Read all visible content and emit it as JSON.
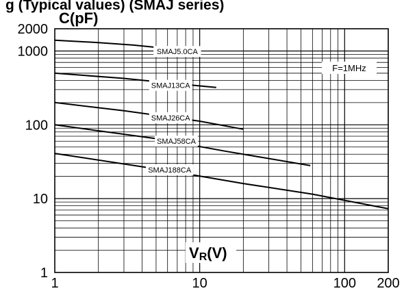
{
  "caption_fragment": "g (Typical values) (SMAJ series)",
  "chart_data": {
    "type": "line",
    "title": "",
    "xlabel": "VR(V)",
    "ylabel": "C(pF)",
    "xscale": "log",
    "yscale": "log",
    "xlim": [
      1,
      200
    ],
    "ylim": [
      1,
      2000
    ],
    "grid": true,
    "x_ticks": [
      {
        "value": 1,
        "label": "1"
      },
      {
        "value": 10,
        "label": "10"
      },
      {
        "value": 100,
        "label": "100"
      },
      {
        "value": 200,
        "label": "200"
      }
    ],
    "y_ticks": [
      {
        "value": 1,
        "label": "1"
      },
      {
        "value": 10,
        "label": "10"
      },
      {
        "value": 100,
        "label": "100"
      },
      {
        "value": 1000,
        "label": "1000"
      },
      {
        "value": 2000,
        "label": "2000"
      }
    ],
    "annotation": "F=1MHz",
    "series": [
      {
        "name": "SMAJ5.0CA",
        "points": [
          [
            1,
            1400
          ],
          [
            2,
            1300
          ],
          [
            3.5,
            1200
          ],
          [
            6,
            1080
          ]
        ]
      },
      {
        "name": "SMAJ13CA",
        "points": [
          [
            1,
            500
          ],
          [
            3,
            425
          ],
          [
            6,
            370
          ],
          [
            13,
            320
          ]
        ]
      },
      {
        "name": "SMAJ26CA",
        "points": [
          [
            1,
            200
          ],
          [
            3,
            155
          ],
          [
            10,
            112
          ],
          [
            20,
            87
          ]
        ]
      },
      {
        "name": "SMAJ58CA",
        "points": [
          [
            1,
            100
          ],
          [
            5,
            65
          ],
          [
            15,
            44
          ],
          [
            58,
            28
          ]
        ]
      },
      {
        "name": "SMAJ188CA",
        "points": [
          [
            1,
            41
          ],
          [
            6,
            24
          ],
          [
            20,
            16
          ],
          [
            60,
            11.5
          ],
          [
            200,
            7.3
          ]
        ]
      }
    ]
  }
}
